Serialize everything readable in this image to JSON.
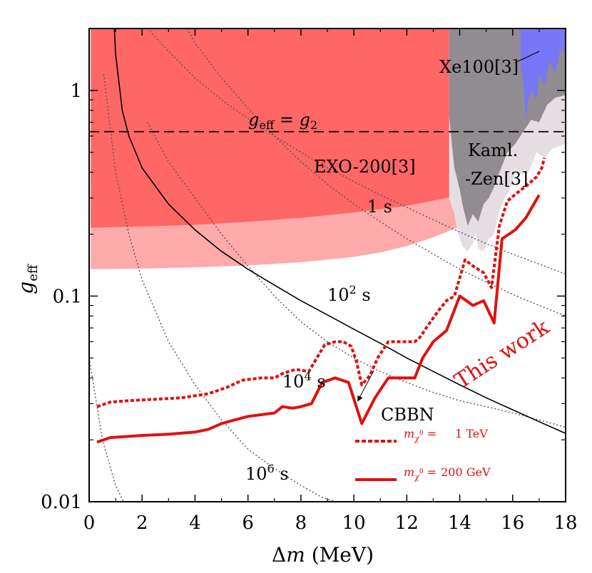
{
  "chart_data": {
    "type": "line",
    "x_axis": {
      "label_symbol": "Δ",
      "label_var": "m",
      "label_unit": " (MeV)",
      "range": [
        0,
        18
      ],
      "ticks": [
        0,
        2,
        4,
        6,
        8,
        10,
        12,
        14,
        16,
        18
      ],
      "tick_labels": [
        "0",
        "2",
        "4",
        "6",
        "8",
        "10",
        "12",
        "14",
        "16",
        "18"
      ]
    },
    "y_axis": {
      "label_var": "g",
      "label_sub": "eff",
      "scale": "log",
      "range": [
        0.01,
        2.0
      ],
      "ticks": [
        0.01,
        0.1,
        1
      ],
      "tick_labels": [
        "0.01",
        "0.1",
        "1"
      ]
    },
    "regions": [
      {
        "name": "EXO-200 dark",
        "color": "#ff6666",
        "label": "EXO-200[3]",
        "x_max": 13.9,
        "lower": [
          [
            0.06,
            0.215
          ],
          [
            2,
            0.218
          ],
          [
            4,
            0.222
          ],
          [
            6,
            0.23
          ],
          [
            8,
            0.24
          ],
          [
            10,
            0.255
          ],
          [
            12,
            0.275
          ],
          [
            13.5,
            0.3
          ],
          [
            13.9,
            0.31
          ]
        ]
      },
      {
        "name": "EXO-200 light",
        "color": "#ffaaaa",
        "lower": [
          [
            0.06,
            0.135
          ],
          [
            2,
            0.136
          ],
          [
            4,
            0.138
          ],
          [
            6,
            0.141
          ],
          [
            8,
            0.146
          ],
          [
            10,
            0.155
          ],
          [
            11,
            0.163
          ],
          [
            12,
            0.175
          ],
          [
            13,
            0.193
          ],
          [
            13.9,
            0.215
          ]
        ]
      },
      {
        "name": "KamLAND-Zen light",
        "color": "#e6dde2"
      },
      {
        "name": "KamLAND-Zen dark",
        "color": "#918c90",
        "label_line1": "Kaml.",
        "label_line2": "-Zen[3]"
      },
      {
        "name": "Xe100",
        "color": "#7777f8",
        "label": "Xe100[3]"
      }
    ],
    "reference_line": {
      "name": "g_eff = g_2",
      "y": 0.63,
      "label_lhs_var": "g",
      "label_lhs_sub": "eff",
      "label_eq": " = ",
      "label_rhs_var": "g",
      "label_rhs_sub": "2"
    },
    "cbbn": {
      "label": "CBBN",
      "points": [
        [
          0.95,
          2.0
        ],
        [
          1,
          1.5
        ],
        [
          1.25,
          0.8
        ],
        [
          1.5,
          0.6
        ],
        [
          2,
          0.42
        ],
        [
          3,
          0.28
        ],
        [
          4,
          0.21
        ],
        [
          5,
          0.165
        ],
        [
          6,
          0.135
        ],
        [
          7,
          0.113
        ],
        [
          8,
          0.095
        ],
        [
          9,
          0.081
        ],
        [
          10,
          0.069
        ],
        [
          11,
          0.059
        ],
        [
          12,
          0.05
        ],
        [
          13,
          0.043
        ],
        [
          14,
          0.037
        ],
        [
          15,
          0.032
        ],
        [
          16,
          0.028
        ],
        [
          17,
          0.0245
        ],
        [
          18,
          0.0215
        ]
      ]
    },
    "lifetime_contours": [
      {
        "label": "1 s",
        "label_base": "1",
        "label_exp": "",
        "label_unit": " s",
        "label_at": [
          10.5,
          0.255
        ],
        "points": [
          [
            2.2,
            2.0
          ],
          [
            3,
            1.55
          ],
          [
            4,
            1.15
          ],
          [
            5,
            0.9
          ],
          [
            6,
            0.73
          ],
          [
            7,
            0.6
          ],
          [
            8,
            0.5
          ],
          [
            9,
            0.42
          ],
          [
            10,
            0.36
          ],
          [
            11,
            0.31
          ],
          [
            12,
            0.27
          ],
          [
            13,
            0.235
          ],
          [
            14,
            0.205
          ],
          [
            15,
            0.18
          ],
          [
            16,
            0.16
          ],
          [
            17,
            0.143
          ],
          [
            18,
            0.128
          ]
        ]
      },
      {
        "label": "10^2 s",
        "label_base": "10",
        "label_exp": "2",
        "label_unit": " s",
        "label_at": [
          9.0,
          0.095
        ],
        "points": [
          [
            3.7,
            2.0
          ],
          [
            4,
            1.7
          ],
          [
            5,
            1.15
          ],
          [
            6,
            0.82
          ],
          [
            7,
            0.6
          ],
          [
            8,
            0.45
          ],
          [
            9,
            0.35
          ],
          [
            10,
            0.28
          ],
          [
            11,
            0.23
          ],
          [
            12,
            0.19
          ],
          [
            13,
            0.16
          ],
          [
            14,
            0.135
          ],
          [
            15,
            0.117
          ],
          [
            16,
            0.102
          ],
          [
            17,
            0.09
          ],
          [
            18,
            0.08
          ]
        ]
      },
      {
        "label": "10^4 s",
        "label_base": "10",
        "label_exp": "4",
        "label_unit": " s",
        "label_at": [
          7.3,
          0.036
        ],
        "points": [
          [
            2.2,
            0.7
          ],
          [
            3,
            0.45
          ],
          [
            4,
            0.3
          ],
          [
            5,
            0.2
          ],
          [
            6,
            0.14
          ],
          [
            7,
            0.1
          ],
          [
            8,
            0.075
          ],
          [
            9,
            0.06
          ],
          [
            10,
            0.05
          ],
          [
            11,
            0.043
          ],
          [
            12,
            0.038
          ],
          [
            13,
            0.034
          ],
          [
            14,
            0.031
          ],
          [
            15,
            0.029
          ],
          [
            16,
            0.027
          ],
          [
            17,
            0.025
          ],
          [
            18,
            0.023
          ]
        ]
      },
      {
        "label": "10^6 s",
        "label_base": "10",
        "label_exp": "6",
        "label_unit": " s",
        "label_at": [
          5.9,
          0.0128
        ],
        "points": [
          [
            0.55,
            1.2
          ],
          [
            1,
            0.4
          ],
          [
            1.5,
            0.2
          ],
          [
            2,
            0.12
          ],
          [
            3,
            0.06
          ],
          [
            4,
            0.037
          ],
          [
            5,
            0.025
          ],
          [
            6,
            0.018
          ],
          [
            7,
            0.0145
          ],
          [
            8,
            0.012
          ],
          [
            8.8,
            0.0105
          ],
          [
            9.3,
            0.01
          ]
        ]
      },
      {
        "label": "",
        "points": [
          [
            0.0,
            0.05
          ],
          [
            0.5,
            0.02
          ],
          [
            1.0,
            0.012
          ],
          [
            1.3,
            0.01
          ]
        ]
      }
    ],
    "series": [
      {
        "name": "m_chi0 = 1 TeV",
        "style": "dashed",
        "color": "#e01010",
        "legend_var": "m",
        "legend_sub": "χ",
        "legend_sup": "0",
        "legend_eq": " =",
        "legend_value": "1 TeV",
        "x": [
          0.3,
          0.8,
          1.5,
          2.5,
          3.5,
          4.5,
          5.2,
          5.8,
          6.5,
          7.0,
          7.3,
          7.8,
          8.3,
          8.6,
          8.9,
          9.3,
          9.6,
          9.9,
          10.1,
          10.3,
          10.6,
          10.9,
          11.3,
          11.8,
          12.3,
          12.5,
          12.8,
          13.2,
          13.5,
          13.8,
          14.2,
          14.5,
          14.9,
          15.2,
          15.5,
          15.8,
          16.2,
          16.6,
          16.9,
          17.1,
          17.2
        ],
        "y": [
          0.029,
          0.0305,
          0.031,
          0.0315,
          0.032,
          0.0335,
          0.036,
          0.039,
          0.04,
          0.04,
          0.042,
          0.044,
          0.043,
          0.05,
          0.058,
          0.06,
          0.06,
          0.057,
          0.048,
          0.037,
          0.041,
          0.05,
          0.06,
          0.06,
          0.06,
          0.063,
          0.072,
          0.085,
          0.095,
          0.1,
          0.15,
          0.14,
          0.13,
          0.11,
          0.22,
          0.29,
          0.32,
          0.35,
          0.38,
          0.42,
          0.47
        ]
      },
      {
        "name": "m_chi0 = 200 GeV",
        "style": "solid",
        "color": "#e01010",
        "legend_var": "m",
        "legend_sub": "χ",
        "legend_sup": "0",
        "legend_eq": " =",
        "legend_value": "200 GeV",
        "x": [
          0.3,
          0.8,
          2,
          3,
          4,
          4.5,
          5,
          5.5,
          6,
          6.5,
          7,
          7.3,
          7.7,
          8,
          8.4,
          8.8,
          9.3,
          9.8,
          10.3,
          10.8,
          11.3,
          11.8,
          12.3,
          12.6,
          13,
          13.5,
          14,
          14.5,
          14.9,
          15.3,
          15.6,
          16.1,
          16.5,
          17.0
        ],
        "y": [
          0.0195,
          0.0205,
          0.021,
          0.0213,
          0.0218,
          0.0225,
          0.024,
          0.025,
          0.026,
          0.0265,
          0.027,
          0.029,
          0.0285,
          0.029,
          0.03,
          0.038,
          0.04,
          0.038,
          0.024,
          0.032,
          0.04,
          0.04,
          0.04,
          0.05,
          0.06,
          0.068,
          0.1,
          0.09,
          0.095,
          0.074,
          0.19,
          0.21,
          0.24,
          0.31
        ]
      }
    ],
    "annotations": {
      "this_work": "This work"
    }
  }
}
